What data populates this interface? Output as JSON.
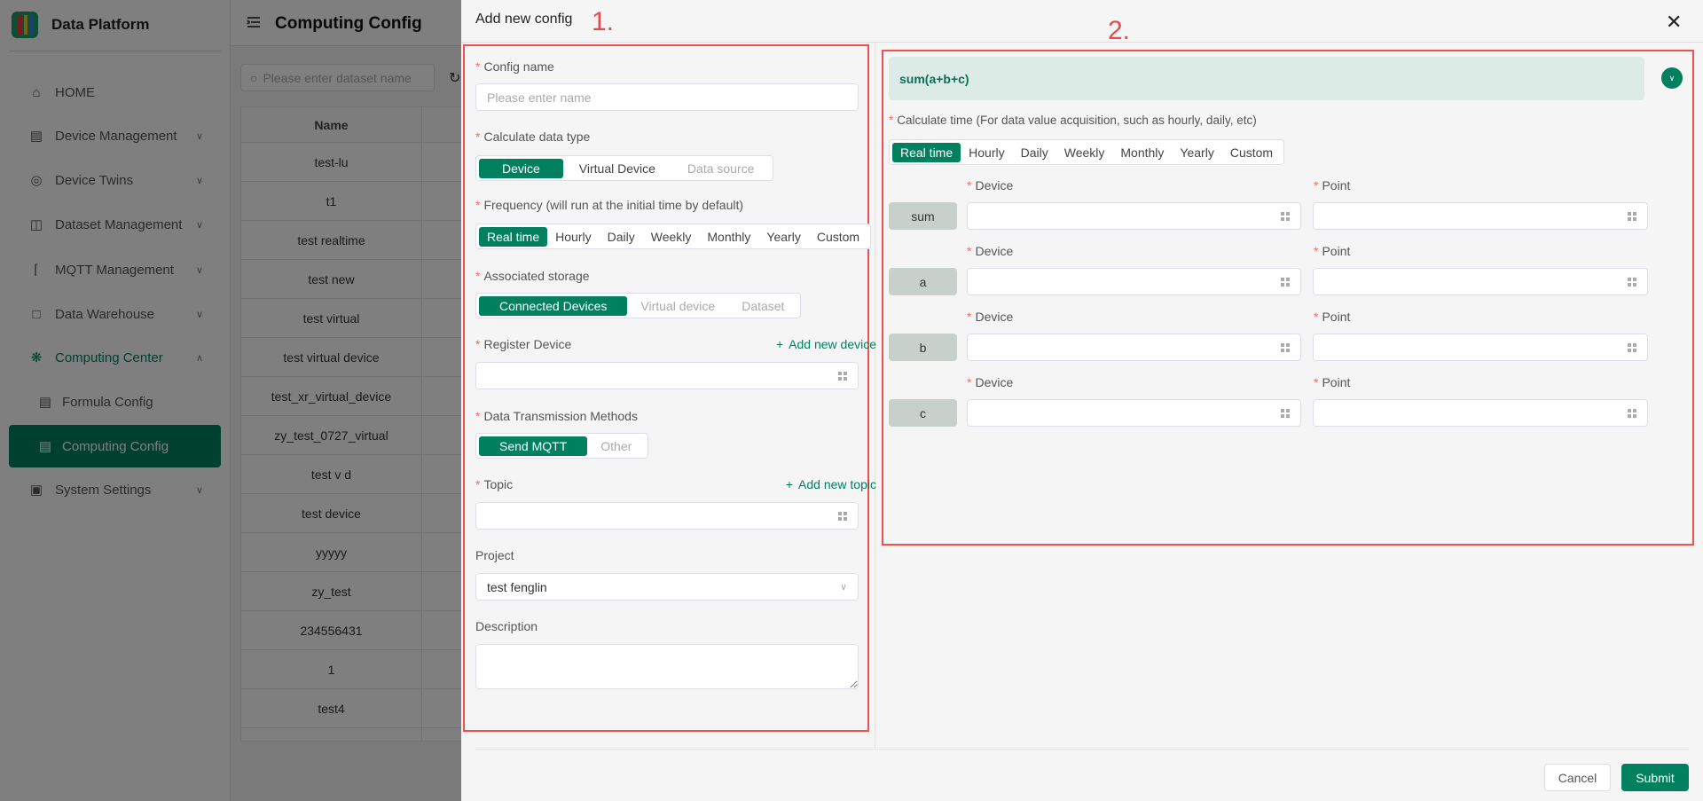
{
  "app": {
    "title": "Data Platform"
  },
  "colors": {
    "accent": "#00805f",
    "annotation": "#e84a4a",
    "formula_bg": "#ddebe7"
  },
  "sidebar": {
    "items": [
      {
        "label": "HOME",
        "icon": "home-icon"
      },
      {
        "label": "Device Management",
        "icon": "server-icon",
        "chevron": "down"
      },
      {
        "label": "Device Twins",
        "icon": "cube-icon",
        "chevron": "down"
      },
      {
        "label": "Dataset Management",
        "icon": "database-icon",
        "chevron": "down"
      },
      {
        "label": "MQTT Management",
        "icon": "router-icon",
        "chevron": "down"
      },
      {
        "label": "Data Warehouse",
        "icon": "board-icon",
        "chevron": "down"
      },
      {
        "label": "Computing Center",
        "icon": "fan-icon",
        "chevron": "up",
        "state": "open"
      },
      {
        "label": "Formula Config",
        "icon": "card-icon",
        "sub": true
      },
      {
        "label": "Computing Config",
        "icon": "card-icon",
        "sub": true,
        "state": "active"
      },
      {
        "label": "System Settings",
        "icon": "monitor-icon",
        "chevron": "down"
      }
    ]
  },
  "main": {
    "title": "Computing Config",
    "search_placeholder": "Please enter dataset name",
    "table": {
      "header": "Name",
      "rows": [
        "test-lu",
        "t1",
        "test realtime",
        "test new",
        "test virtual",
        "test virtual device",
        "test_xr_virtual_device",
        "zy_test_0727_virtual",
        "test v d",
        "test device",
        "yyyyy",
        "zy_test",
        "234556431",
        "1",
        "test4",
        "......"
      ]
    }
  },
  "drawer": {
    "title": "Add new config",
    "annotations": [
      "1.",
      "2."
    ],
    "form": {
      "config_name": {
        "label": "Config name",
        "placeholder": "Please enter name"
      },
      "data_type": {
        "label": "Calculate data type",
        "options": [
          "Device",
          "Virtual Device",
          "Data source"
        ],
        "selected": "Device",
        "disabled": [
          "Data source"
        ]
      },
      "frequency": {
        "label": "Frequency (will run at the initial time by default)",
        "options": [
          "Real time",
          "Hourly",
          "Daily",
          "Weekly",
          "Monthly",
          "Yearly",
          "Custom"
        ],
        "selected": "Real time"
      },
      "storage": {
        "label": "Associated storage",
        "options": [
          "Connected Devices",
          "Virtual device",
          "Dataset"
        ],
        "selected": "Connected Devices",
        "disabled": [
          "Virtual device",
          "Dataset"
        ]
      },
      "register_device": {
        "label": "Register Device",
        "add_link": "Add new device",
        "value": ""
      },
      "transmission": {
        "label": "Data Transmission Methods",
        "options": [
          "Send MQTT",
          "Other"
        ],
        "selected": "Send MQTT",
        "disabled": [
          "Other"
        ]
      },
      "topic": {
        "label": "Topic",
        "add_link": "Add new topic",
        "value": ""
      },
      "project": {
        "label": "Project",
        "value": "test fenglin"
      },
      "description": {
        "label": "Description",
        "value": ""
      }
    },
    "formula": {
      "expression": "sum(a+b+c)",
      "calc_time": {
        "label": "Calculate time (For data value acquisition, such as hourly, daily, etc)",
        "options": [
          "Real time",
          "Hourly",
          "Daily",
          "Weekly",
          "Monthly",
          "Yearly",
          "Custom"
        ],
        "selected": "Real time"
      },
      "device_label": "Device",
      "point_label": "Point",
      "variables": [
        "sum",
        "a",
        "b",
        "c"
      ]
    },
    "footer": {
      "cancel": "Cancel",
      "submit": "Submit"
    }
  }
}
